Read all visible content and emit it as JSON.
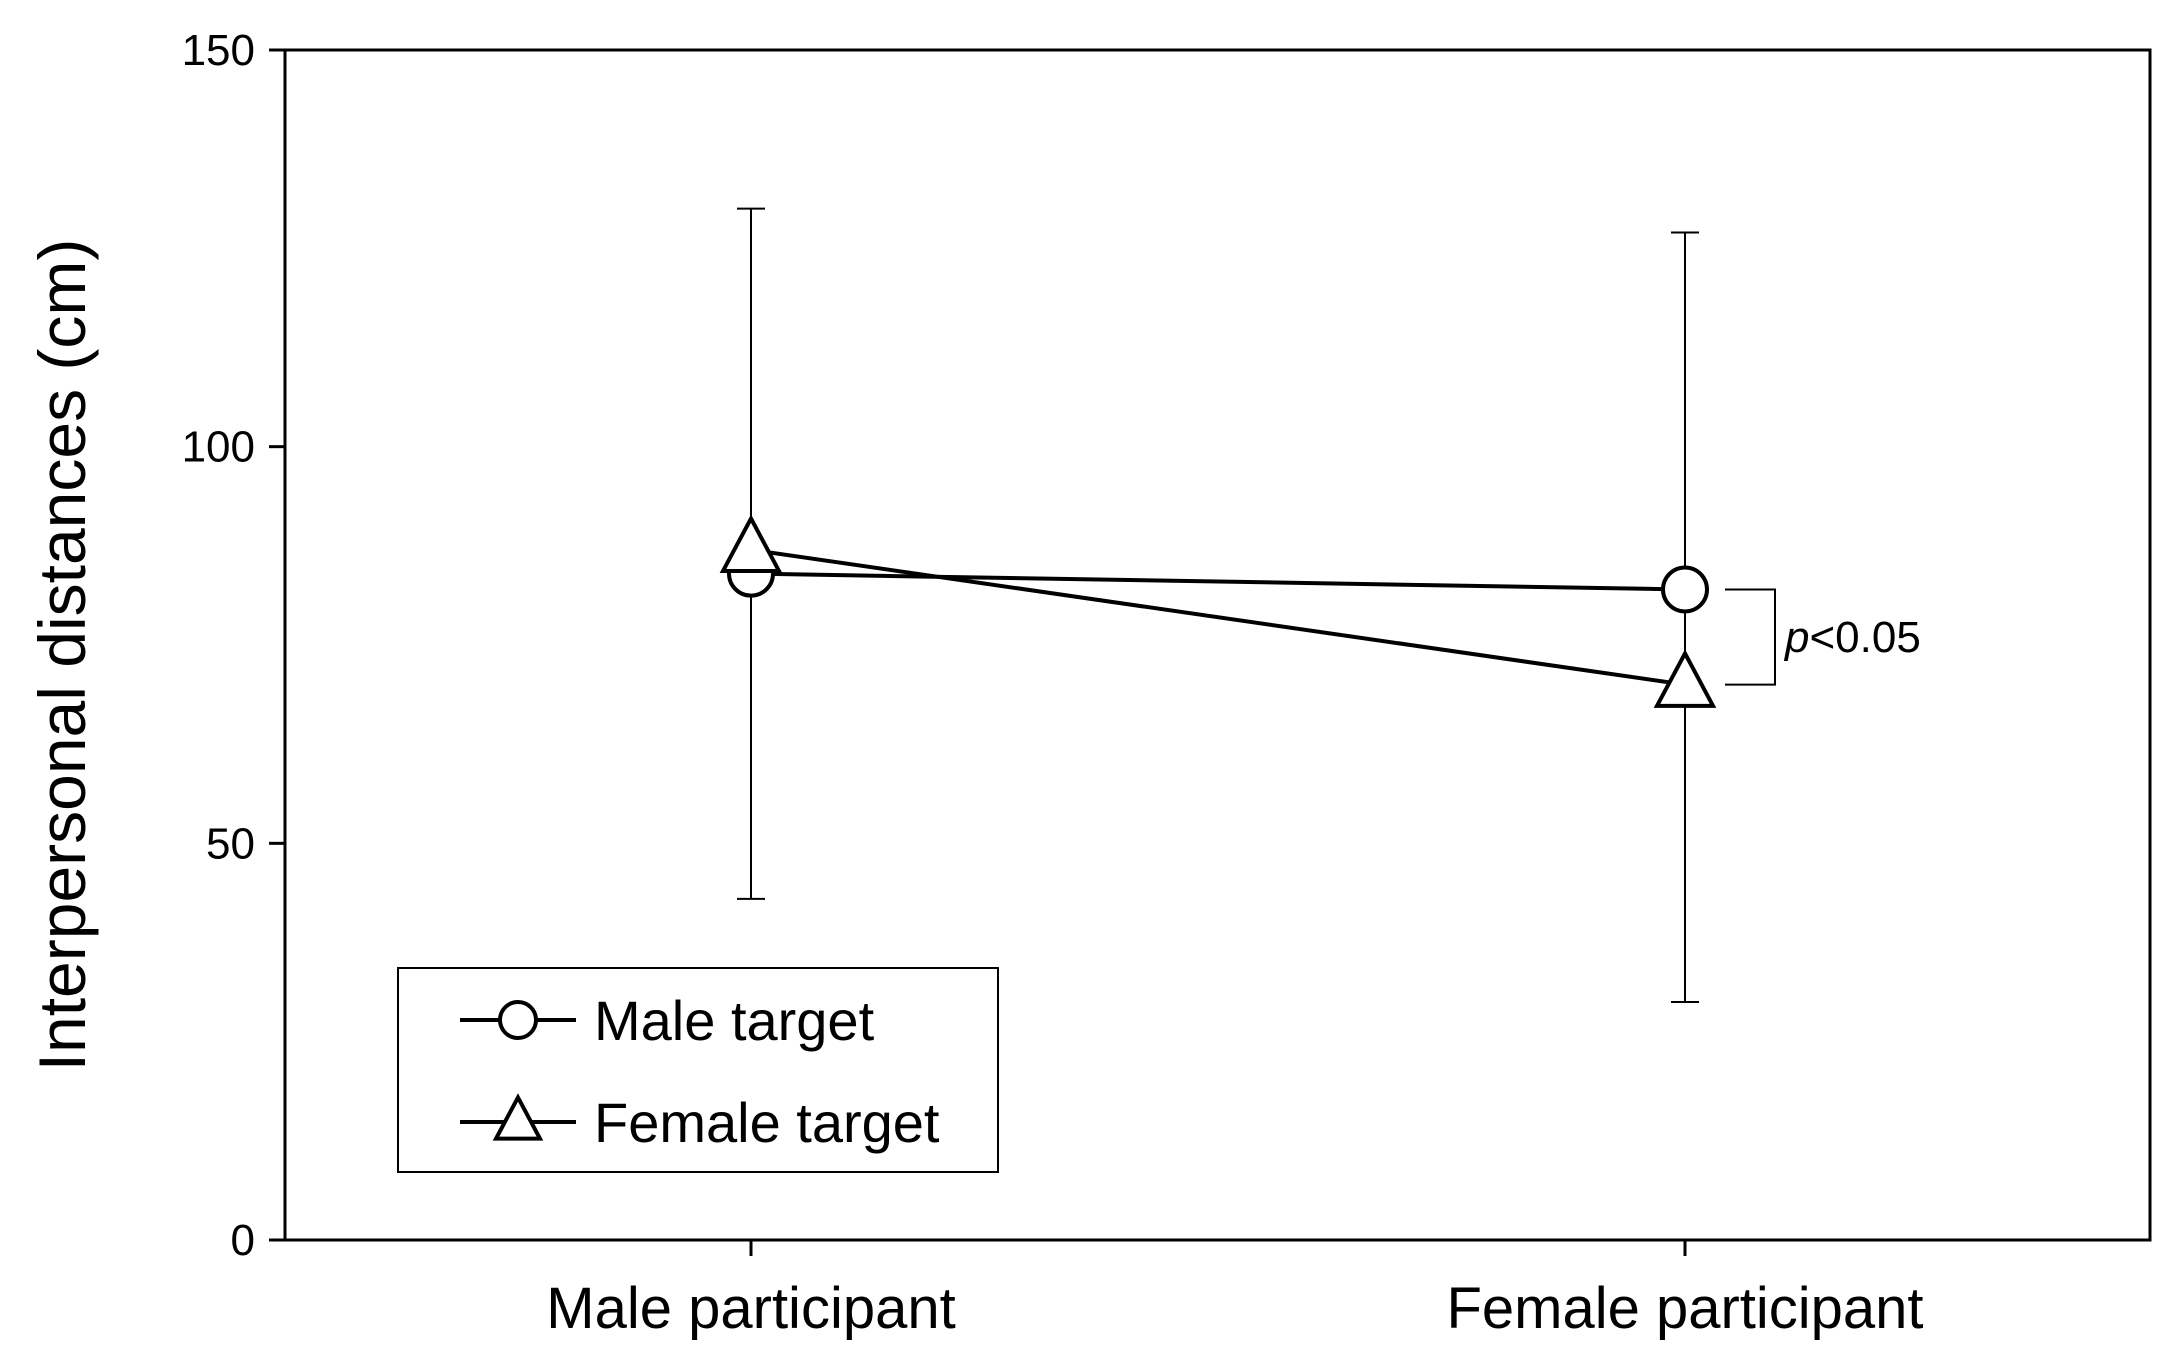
{
  "chart_data": {
    "type": "line",
    "categories": [
      "Male participant",
      "Female participant"
    ],
    "ylabel": "Interpersonal distances (cm)",
    "ylim": [
      0,
      150
    ],
    "yticks": [
      0,
      50,
      100,
      150
    ],
    "series": [
      {
        "name": "Male target",
        "marker": "circle",
        "values": [
          84,
          82
        ],
        "error_lower": [
          43,
          30
        ],
        "error_upper": [
          130,
          127
        ]
      },
      {
        "name": "Female target",
        "marker": "triangle",
        "values": [
          87,
          70
        ],
        "error_lower": [
          43,
          30
        ],
        "error_upper": [
          130,
          127
        ]
      }
    ],
    "annotation": {
      "prefix": "p",
      "text": "<0.05",
      "category": "Female participant"
    },
    "legend_position": "bottom-left",
    "grid": false
  }
}
